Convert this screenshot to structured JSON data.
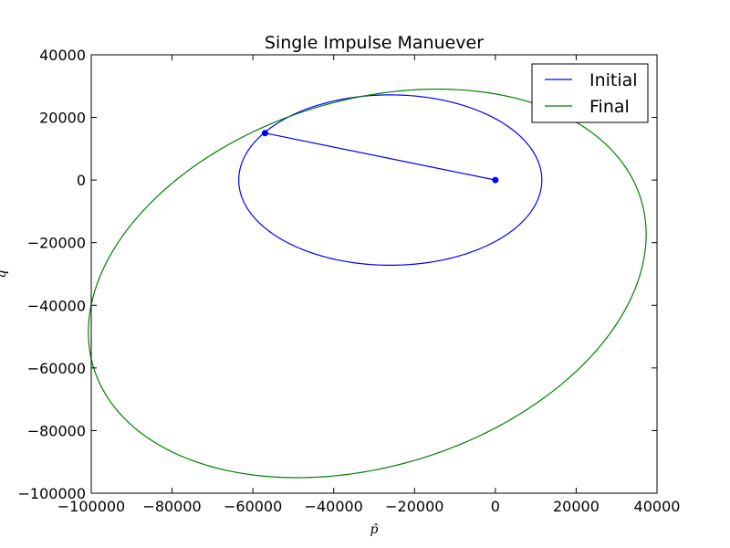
{
  "chart_data": {
    "type": "line",
    "title": "Single Impulse Manuever",
    "xlabel": "p̂",
    "ylabel": "q̂",
    "xlim": [
      -100000,
      40000
    ],
    "ylim": [
      -100000,
      40000
    ],
    "x_ticks": [
      -100000,
      -80000,
      -60000,
      -40000,
      -20000,
      0,
      20000,
      40000
    ],
    "y_ticks": [
      40000,
      20000,
      0,
      -20000,
      -40000,
      -60000,
      -80000,
      -100000
    ],
    "x_tick_labels": [
      "−100000",
      "−80000",
      "−60000",
      "−40000",
      "−20000",
      "0",
      "20000",
      "40000"
    ],
    "y_tick_labels": [
      "40000",
      "20000",
      "0",
      "−20000",
      "−40000",
      "−60000",
      "−80000",
      "−100000"
    ],
    "grid": false,
    "legend_position": "top-right",
    "series": [
      {
        "name": "Initial",
        "color": "#0000ff",
        "kind": "ellipse",
        "center": [
          -26000,
          0
        ],
        "semi_axes": [
          37500,
          27200
        ],
        "rotation_deg": 0
      },
      {
        "name": "Final",
        "color": "#008000",
        "kind": "ellipse",
        "center": [
          -31700,
          -33000
        ],
        "semi_axes": [
          74000,
          56000
        ],
        "rotation_deg": 33.5
      }
    ],
    "impulse_segment": {
      "color": "#0000ff",
      "points": [
        [
          0,
          0
        ],
        [
          -57000,
          15000
        ]
      ]
    }
  }
}
